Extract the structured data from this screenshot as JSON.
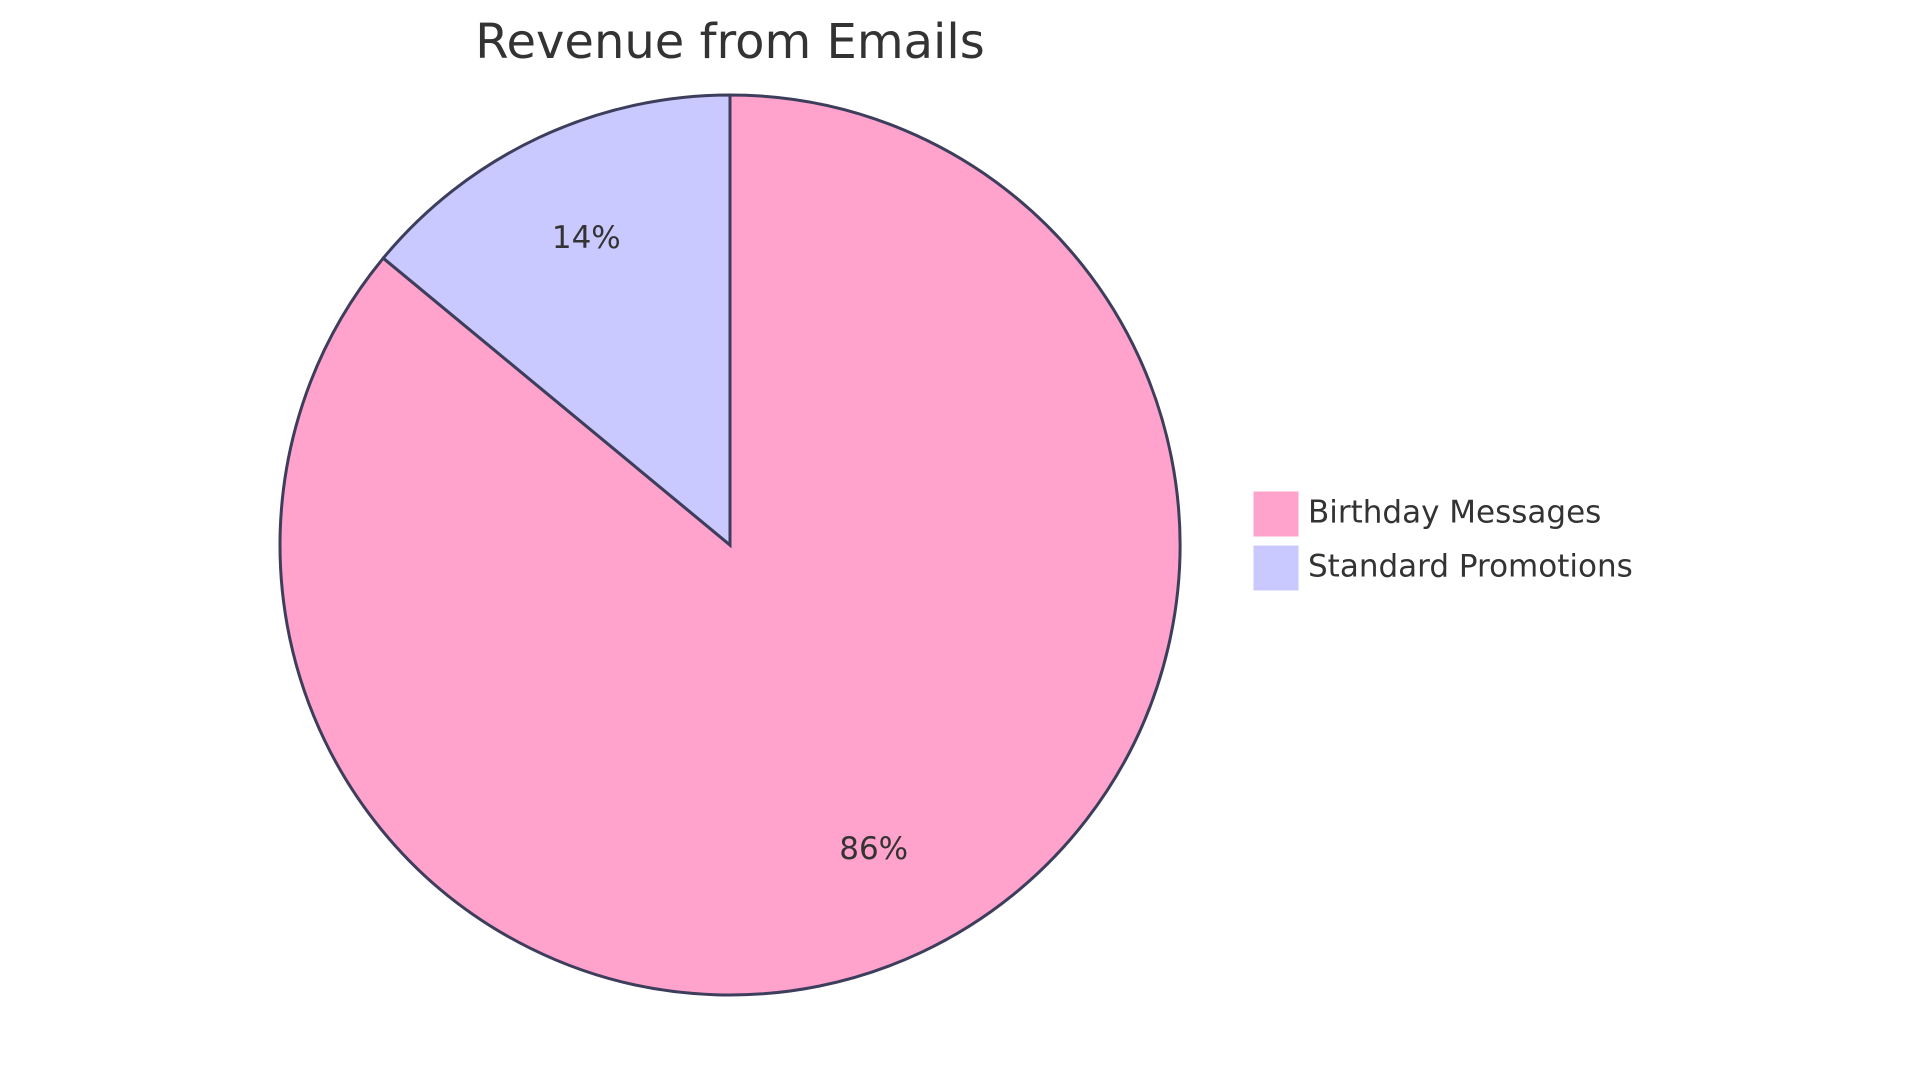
{
  "chart_data": {
    "type": "pie",
    "title": "Revenue from Emails",
    "slices": [
      {
        "label": "Birthday Messages",
        "value": 86,
        "value_label": "86%",
        "color": "#ffa3cd"
      },
      {
        "label": "Standard Promotions",
        "value": 14,
        "value_label": "14%",
        "color": "#c9c9ff"
      }
    ],
    "start_angle": "top (12 o'clock)",
    "direction": "clockwise",
    "stroke_color": "#3d3d5c",
    "legend_position": "right"
  }
}
